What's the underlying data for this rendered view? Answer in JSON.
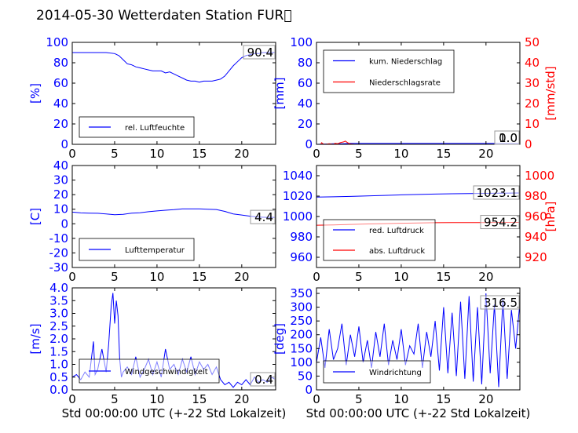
{
  "title": "2014-05-30 Wetterdaten Station FUR\u0000",
  "colors": {
    "left_axis": "#0000ff",
    "right_axis": "#ff0000",
    "ink": "#000000"
  },
  "chart_data": [
    {
      "type": "line",
      "panel": "top-left",
      "ylabel": "[%]",
      "xlim": [
        0,
        24
      ],
      "ylim": [
        0,
        100
      ],
      "xticks": [
        0,
        5,
        10,
        15,
        20
      ],
      "yticks": [
        0,
        20,
        40,
        60,
        80,
        100
      ],
      "legend_position": "lower-left",
      "value_box": "90.4",
      "series": [
        {
          "name": "rel. Luftfeuchte",
          "color": "#0000ff",
          "axis": "left",
          "x": [
            0,
            1,
            2,
            3,
            4,
            5,
            5.5,
            6,
            6.5,
            7,
            7.5,
            8,
            8.5,
            9,
            9.5,
            10,
            10.5,
            11,
            11.5,
            12,
            12.5,
            13,
            13.5,
            14,
            14.5,
            15,
            15.5,
            16,
            16.5,
            17,
            17.5,
            18,
            18.5,
            19,
            19.5,
            20,
            20.5,
            21,
            21.5,
            22,
            22.5,
            23,
            23.5,
            24
          ],
          "y": [
            90,
            90,
            90,
            90,
            90,
            89,
            87,
            83,
            79,
            78,
            76,
            75,
            74,
            73,
            72,
            72,
            72,
            70,
            71,
            69,
            67,
            65,
            63,
            62,
            62,
            61,
            62,
            62,
            62,
            63,
            64,
            67,
            72,
            77,
            81,
            85,
            87,
            88,
            89,
            89,
            90,
            90,
            90,
            90
          ]
        }
      ]
    },
    {
      "type": "line",
      "panel": "top-right",
      "ylabel": "[mm]",
      "ylabel_right": "[mm/std]",
      "xlim": [
        0,
        24
      ],
      "ylim": [
        0,
        100
      ],
      "ylim_right": [
        0,
        50
      ],
      "xticks": [
        0,
        5,
        10,
        15,
        20
      ],
      "yticks": [
        0,
        20,
        40,
        60,
        80,
        100
      ],
      "yticks_right": [
        0,
        10,
        20,
        30,
        40,
        50
      ],
      "legend_position": "upper-left",
      "value_box": "1.0",
      "value_box_right": "0.0",
      "series": [
        {
          "name": "kum. Niederschlag",
          "color": "#0000ff",
          "axis": "left",
          "x": [
            0,
            1,
            2,
            3,
            3.5,
            4,
            5,
            10,
            15,
            20,
            24
          ],
          "y": [
            0,
            0.3,
            0.5,
            0.6,
            0.8,
            1.0,
            1.0,
            1.0,
            1.0,
            1.0,
            1.0
          ]
        },
        {
          "name": "Niederschlagsrate",
          "color": "#ff0000",
          "axis": "right",
          "x": [
            0,
            0.5,
            0.6,
            0.8,
            1.0,
            1.5,
            2.0,
            2.2,
            2.5,
            2.8,
            3.0,
            3.2,
            3.4,
            3.6,
            3.8,
            4.0,
            4.5,
            5,
            10,
            15,
            20,
            24
          ],
          "y": [
            0,
            0,
            0.8,
            0.2,
            0,
            0.3,
            0,
            0.5,
            0.3,
            0.8,
            1.0,
            1.2,
            1.6,
            1.0,
            0.5,
            0.2,
            0,
            0,
            0,
            0,
            0,
            0
          ]
        }
      ]
    },
    {
      "type": "line",
      "panel": "middle-left",
      "ylabel": "[C]",
      "xlim": [
        0,
        24
      ],
      "ylim": [
        -30,
        40
      ],
      "xticks": [
        0,
        5,
        10,
        15,
        20
      ],
      "yticks": [
        -30,
        -20,
        -10,
        0,
        10,
        20,
        30,
        40
      ],
      "legend_position": "lower-left",
      "value_box": "4.4",
      "series": [
        {
          "name": "Lufttemperatur",
          "color": "#0000ff",
          "axis": "left",
          "x": [
            0,
            1,
            2,
            3,
            4,
            5,
            6,
            7,
            8,
            9,
            10,
            11,
            12,
            13,
            14,
            15,
            16,
            17,
            18,
            19,
            20,
            21,
            22,
            23,
            24
          ],
          "y": [
            8,
            7.5,
            7.3,
            7.2,
            6.8,
            6.2,
            6.5,
            7.3,
            7.6,
            8.3,
            8.8,
            9.3,
            9.7,
            10.3,
            10.3,
            10.2,
            10.0,
            9.8,
            8.5,
            6.8,
            6.0,
            5.2,
            4.6,
            4.4,
            4.4
          ]
        }
      ]
    },
    {
      "type": "line",
      "panel": "middle-right",
      "ylabel_right": "[hPa]",
      "xlim": [
        0,
        24
      ],
      "ylim": [
        950,
        1050
      ],
      "ylim_right": [
        910,
        1010
      ],
      "xticks": [
        0,
        5,
        10,
        15,
        20
      ],
      "yticks": [
        960,
        980,
        1000,
        1020,
        1040
      ],
      "yticks_right": [
        920,
        940,
        960,
        980,
        1000
      ],
      "legend_position": "lower-left",
      "value_box": "1023.1",
      "value_box_right": "954.2",
      "series": [
        {
          "name": "red. Luftdruck",
          "color": "#0000ff",
          "axis": "left",
          "x": [
            0,
            2,
            4,
            6,
            8,
            10,
            12,
            14,
            16,
            18,
            20,
            22,
            24
          ],
          "y": [
            1019,
            1019.3,
            1019.7,
            1020.2,
            1020.7,
            1021.2,
            1021.6,
            1022.0,
            1022.3,
            1022.5,
            1022.7,
            1022.9,
            1023.1
          ]
        },
        {
          "name": "abs. Luftdruck",
          "color": "#ff0000",
          "axis": "right",
          "x": [
            0,
            2,
            4,
            6,
            8,
            10,
            12,
            14,
            16,
            18,
            20,
            22,
            24
          ],
          "y": [
            951.5,
            951.8,
            952.2,
            952.7,
            953.0,
            953.4,
            953.7,
            953.9,
            954.0,
            954.1,
            954.1,
            954.2,
            954.2
          ]
        }
      ]
    },
    {
      "type": "line",
      "panel": "bottom-left",
      "ylabel": "[m/s]",
      "xlabel": "Std 00:00:00 UTC (+-22 Std Lokalzeit)",
      "xlim": [
        0,
        24
      ],
      "ylim": [
        0,
        4
      ],
      "xticks": [
        0,
        5,
        10,
        15,
        20
      ],
      "yticks": [
        0.0,
        0.5,
        1.0,
        1.5,
        2.0,
        2.5,
        3.0,
        3.5,
        4.0
      ],
      "legend_position": "lower-left",
      "value_box": "0.4",
      "series": [
        {
          "name": "Windgeschwindigkeit",
          "color": "#0000ff",
          "axis": "left",
          "x": [
            0,
            0.5,
            1,
            1.5,
            2,
            2.5,
            2.7,
            3,
            3.5,
            4,
            4.3,
            4.6,
            4.8,
            5.0,
            5.2,
            5.4,
            5.6,
            5.8,
            6,
            6.5,
            7,
            7.5,
            8,
            8.5,
            9,
            9.5,
            10,
            10.5,
            11,
            11.5,
            12,
            12.5,
            13,
            13.5,
            14,
            14.5,
            15,
            15.5,
            16,
            16.5,
            17,
            17.5,
            18,
            18.5,
            19,
            19.5,
            20,
            20.5,
            21,
            21.5,
            22,
            22.5,
            23,
            23.5,
            24
          ],
          "y": [
            0.5,
            0.6,
            0.4,
            0.7,
            0.5,
            1.9,
            0.6,
            0.8,
            1.6,
            0.7,
            1.8,
            3.3,
            3.8,
            2.6,
            3.5,
            2.9,
            1.2,
            0.5,
            0.7,
            0.9,
            0.6,
            1.3,
            0.5,
            0.8,
            1.2,
            0.6,
            1.1,
            0.5,
            1.6,
            0.8,
            1.0,
            0.6,
            1.2,
            0.7,
            1.3,
            0.6,
            1.1,
            0.8,
            1.0,
            0.6,
            0.9,
            0.4,
            0.2,
            0.3,
            0.1,
            0.3,
            0.2,
            0.4,
            0.2,
            0.5,
            0.3,
            0.4,
            0.3,
            0.5,
            0.4
          ]
        }
      ]
    },
    {
      "type": "line",
      "panel": "bottom-right",
      "ylabel": "[deg]",
      "xlabel": "Std 00:00:00 UTC (+-22 Std Lokalzeit)",
      "xlim": [
        0,
        24
      ],
      "ylim": [
        0,
        370
      ],
      "xticks": [
        0,
        5,
        10,
        15,
        20
      ],
      "yticks": [
        0,
        50,
        100,
        150,
        200,
        250,
        300,
        350
      ],
      "legend_position": "lower-left",
      "value_box": "316.5",
      "series": [
        {
          "name": "Windrichtung",
          "color": "#0000ff",
          "axis": "left",
          "x": [
            0,
            0.5,
            1,
            1.5,
            2,
            2.5,
            3,
            3.5,
            4,
            4.5,
            5,
            5.5,
            6,
            6.5,
            7,
            7.5,
            8,
            8.5,
            9,
            9.5,
            10,
            10.5,
            11,
            11.5,
            12,
            12.5,
            13,
            13.5,
            14,
            14.5,
            15,
            15.5,
            16,
            16.5,
            17,
            17.5,
            18,
            18.5,
            19,
            19.5,
            20,
            20.5,
            21,
            21.5,
            22,
            22.5,
            23,
            23.5,
            24
          ],
          "y": [
            100,
            190,
            80,
            220,
            110,
            150,
            240,
            90,
            200,
            120,
            230,
            100,
            180,
            80,
            210,
            120,
            240,
            90,
            180,
            110,
            220,
            90,
            160,
            130,
            240,
            80,
            210,
            120,
            250,
            70,
            300,
            60,
            280,
            50,
            320,
            40,
            340,
            30,
            300,
            20,
            350,
            60,
            310,
            10,
            330,
            40,
            290,
            150,
            316
          ]
        }
      ]
    }
  ]
}
